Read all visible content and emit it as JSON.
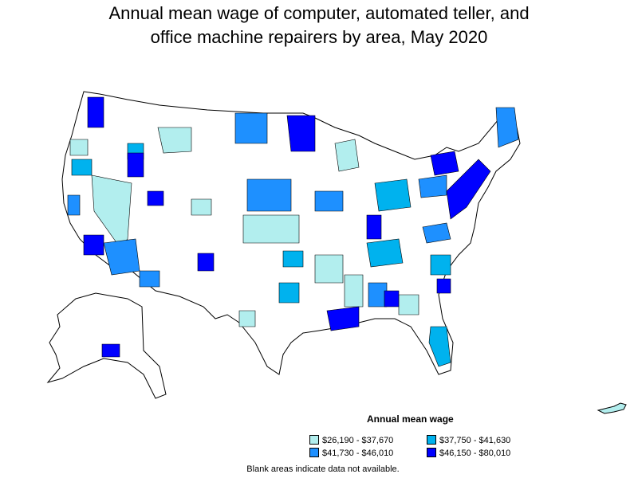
{
  "title_line1": "Annual mean wage of computer, automated teller, and",
  "title_line2": "office machine repairers by area, May 2020",
  "legend": {
    "title": "Annual mean wage",
    "items": [
      {
        "label": "$26,190 - $37,670",
        "color": "#b2eeee"
      },
      {
        "label": "$37,750 - $41,630",
        "color": "#00b2ee"
      },
      {
        "label": "$41,730 - $46,010",
        "color": "#1e90ff"
      },
      {
        "label": "$46,150 - $80,010",
        "color": "#0000ff"
      }
    ]
  },
  "note": "Blank areas indicate data not available.",
  "colors": {
    "low": "#b2eeee",
    "mid_low": "#00b2ee",
    "mid_high": "#1e90ff",
    "high": "#0000ff",
    "blank": "#ffffff",
    "border": "#000000"
  }
}
